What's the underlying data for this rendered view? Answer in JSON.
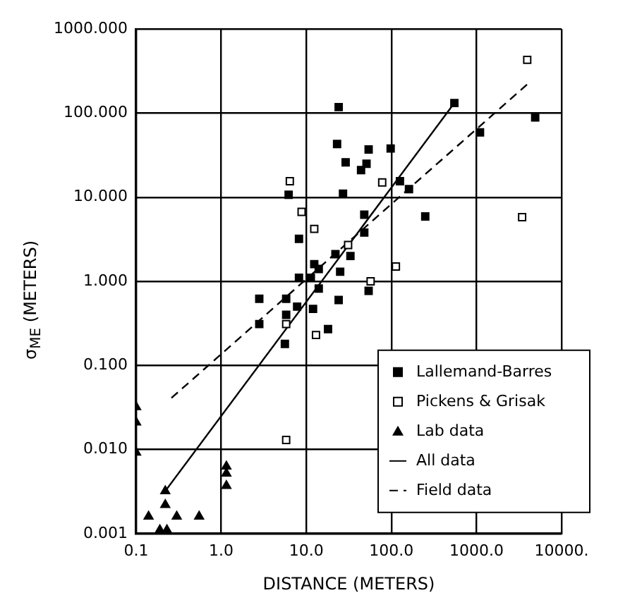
{
  "chart_data": {
    "type": "scatter",
    "xlabel": "DISTANCE (METERS)",
    "ylabel": "σ$_{ME}$ (METERS)",
    "log": "xy",
    "grid": true,
    "legend": "bottom right",
    "xlim": [
      0.1,
      10000
    ],
    "xticks": [
      0.1,
      {
        "value": 1,
        "label": "1.0"
      },
      {
        "value": 10,
        "label": "10.0"
      },
      {
        "value": 100,
        "label": "100.0"
      },
      {
        "value": 1000,
        "label": "1000.0"
      },
      {
        "value": 10000,
        "label": "10000."
      }
    ],
    "ylim": [
      0.001,
      1000
    ],
    "yticks": [
      {
        "value": 0.001,
        "label": "0.001"
      },
      {
        "value": 0.01,
        "label": "0.010"
      },
      {
        "value": 0.1,
        "label": "0.100"
      },
      {
        "value": 1,
        "label": "1.000"
      },
      {
        "value": 10,
        "label": "10.000"
      },
      {
        "value": 100,
        "label": "100.000"
      },
      {
        "value": 1000,
        "label": "1000.000"
      }
    ],
    "series": [
      {
        "name": "Lallemand-Barres",
        "color": "#000000",
        "marker": "square",
        "x": [
          24,
          550,
          4900,
          1100,
          23,
          54,
          98,
          29,
          51,
          44,
          126,
          161,
          6.2,
          27,
          250,
          48,
          48,
          8.2,
          22,
          33,
          12.4,
          14,
          25,
          8.2,
          11.3,
          2.8,
          5.8,
          14,
          7.8,
          12,
          24,
          54,
          5.8,
          2.8,
          18,
          5.6
        ],
        "values": [
          118,
          132,
          89,
          59,
          43,
          37,
          38,
          26,
          25,
          21,
          15.5,
          12.5,
          10.7,
          11,
          5.9,
          6.2,
          3.8,
          3.2,
          2.1,
          2.0,
          1.6,
          1.4,
          1.3,
          1.1,
          1.1,
          0.62,
          0.62,
          0.82,
          0.5,
          0.47,
          0.6,
          0.77,
          0.4,
          0.31,
          0.27,
          0.18
        ]
      },
      {
        "name": "Pickens & Grisak",
        "color": "#000000",
        "marker": "square",
        "x": [
          3950,
          6.4,
          78,
          8.8,
          12.4,
          3440,
          31,
          113,
          57,
          5.8,
          13,
          5.8
        ],
        "values": [
          430,
          15.5,
          15,
          6.7,
          4.2,
          5.8,
          2.7,
          1.5,
          1.0,
          0.31,
          0.23,
          0.013
        ]
      },
      {
        "name": "Lab data",
        "color": "#000000",
        "marker": "triangle",
        "x": [
          0.1,
          0.1,
          0.1,
          1.15,
          1.15,
          1.15,
          0.22,
          0.22,
          0.14,
          0.3,
          0.55,
          0.19,
          0.23
        ],
        "values": [
          0.032,
          0.021,
          0.0092,
          0.0063,
          0.0052,
          0.0037,
          0.0032,
          0.0022,
          0.0016,
          0.0016,
          0.0016,
          0.0011,
          0.0011
        ]
      },
      {
        "name": "All data",
        "type": "line",
        "color": "#000000",
        "marker": "none",
        "line_style": "solid",
        "x": [
          0.22,
          550
        ],
        "values": [
          0.0032,
          132
        ]
      },
      {
        "name": "Field data",
        "type": "line",
        "color": "#000000",
        "marker": "none",
        "line_style": "dashed",
        "x": [
          0.26,
          3950
        ],
        "values": [
          0.041,
          220
        ]
      }
    ]
  }
}
